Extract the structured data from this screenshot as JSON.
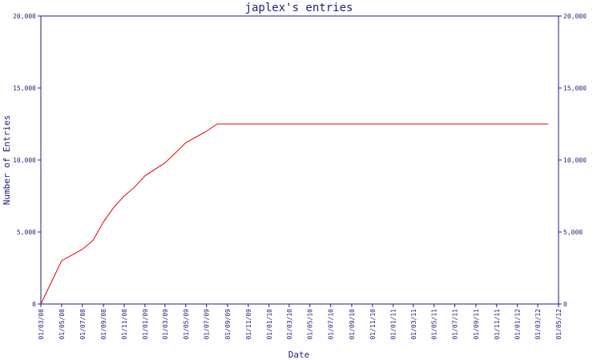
{
  "chart_data": {
    "type": "line",
    "title": "japlex's entries",
    "xlabel": "Date",
    "ylabel": "Number of Entries",
    "ylim": [
      0,
      20000
    ],
    "yticks": [
      0,
      5000,
      10000,
      15000,
      20000
    ],
    "ytick_labels": [
      "0",
      "5,000",
      "10,000",
      "15,000",
      "20,000"
    ],
    "xlim": [
      "2008-03-01",
      "2012-05-01"
    ],
    "xtick_labels": [
      "01/03/08",
      "01/05/08",
      "01/07/08",
      "01/09/08",
      "01/11/08",
      "01/01/09",
      "01/03/09",
      "01/05/09",
      "01/07/09",
      "01/09/09",
      "01/11/09",
      "01/01/10",
      "01/03/10",
      "01/05/10",
      "01/07/10",
      "01/09/10",
      "01/11/10",
      "01/01/11",
      "01/03/11",
      "01/05/11",
      "01/07/11",
      "01/09/11",
      "01/11/11",
      "01/01/12",
      "01/03/12",
      "01/05/12"
    ],
    "grid": false,
    "series": [
      {
        "x": [
          "2008-03-01",
          "2008-05-01",
          "2008-07-01",
          "2008-08-01",
          "2008-09-01",
          "2008-10-01",
          "2008-11-01",
          "2008-12-01",
          "2009-01-01",
          "2009-03-01",
          "2009-04-01",
          "2009-05-01",
          "2009-07-01",
          "2009-08-01",
          "2012-04-01"
        ],
        "values": [
          0,
          3000,
          3800,
          4400,
          5700,
          6700,
          7500,
          8100,
          8900,
          9800,
          10500,
          11200,
          12000,
          12500,
          12500
        ]
      }
    ]
  },
  "colors": {
    "axis": "#1f1f7a",
    "line": "#e8000b"
  }
}
